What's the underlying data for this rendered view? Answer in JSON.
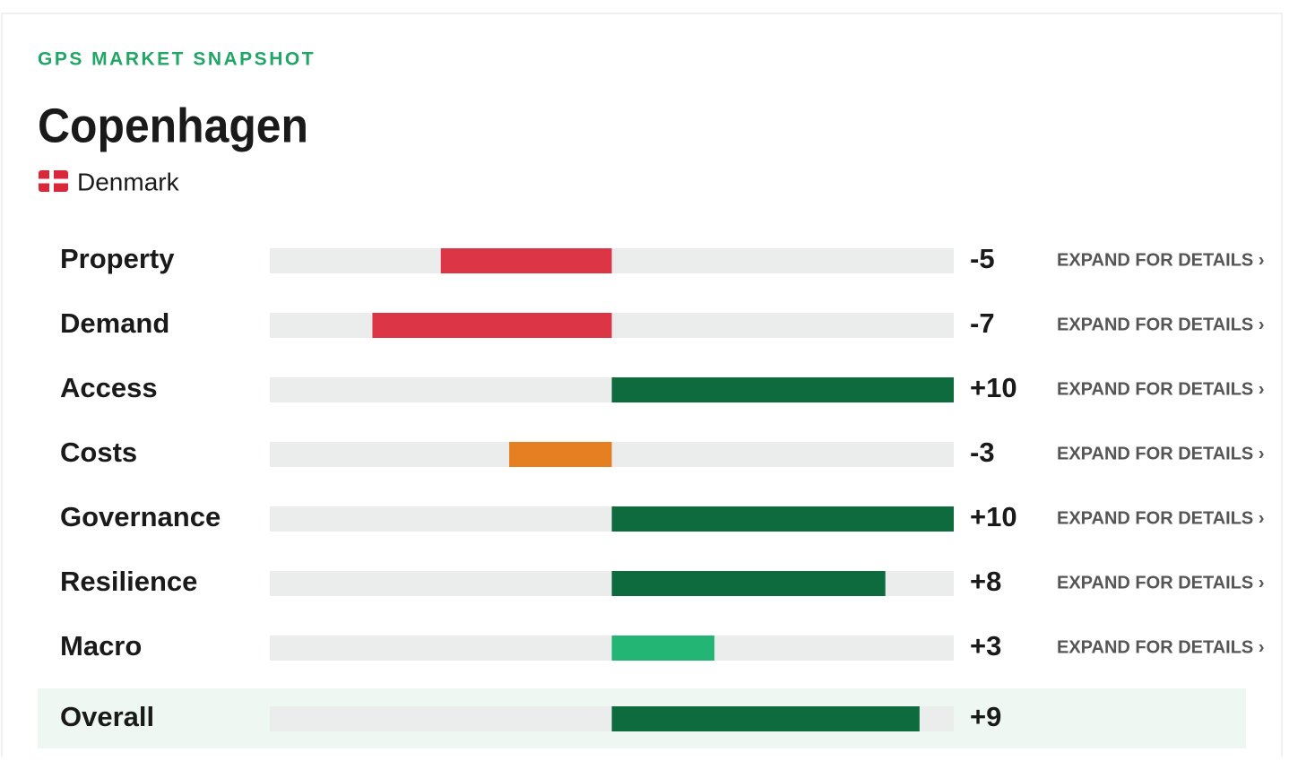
{
  "header": {
    "eyebrow": "GPS MARKET SNAPSHOT",
    "title": "Copenhagen",
    "country": "Denmark"
  },
  "chart_data": {
    "type": "bar",
    "orientation": "horizontal",
    "categories": [
      "Property",
      "Demand",
      "Access",
      "Costs",
      "Governance",
      "Resilience",
      "Macro"
    ],
    "values": [
      -5,
      -7,
      10,
      -3,
      10,
      8,
      3
    ],
    "value_labels": [
      "-5",
      "-7",
      "+10",
      "-3",
      "+10",
      "+8",
      "+3"
    ],
    "colors": [
      "#dc3545",
      "#dc3545",
      "#0e6b3e",
      "#e67e22",
      "#0e6b3e",
      "#0e6b3e",
      "#22b573"
    ],
    "xlim": [
      -10,
      10
    ],
    "action_label": "EXPAND FOR DETAILS ›",
    "total": {
      "category": "Overall",
      "value": 9,
      "value_label": "+9",
      "color": "#0e6b3e"
    }
  }
}
